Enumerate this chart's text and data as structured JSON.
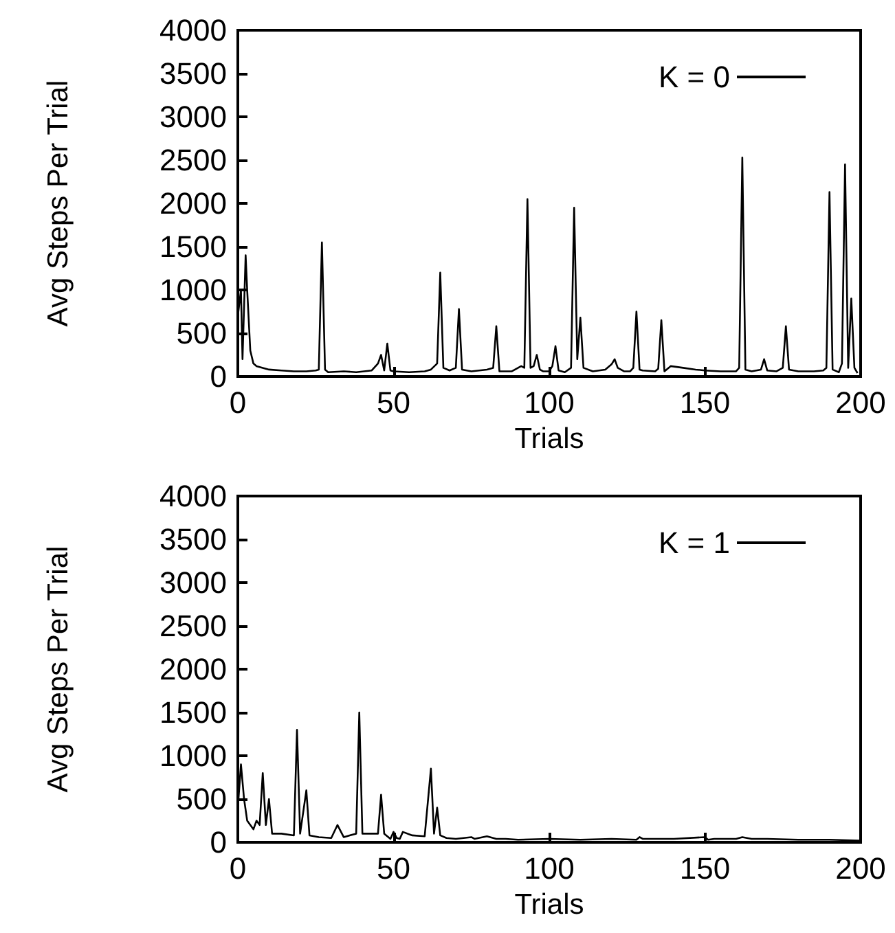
{
  "chart_data": [
    {
      "type": "line",
      "xlabel": "Trials",
      "ylabel": "Avg Steps Per Trial",
      "xlim": [
        0,
        200
      ],
      "xticks": [
        0,
        50,
        100,
        150,
        200
      ],
      "ylim": [
        0,
        4000
      ],
      "yticks": [
        0,
        500,
        1000,
        1500,
        2000,
        2500,
        3000,
        3500,
        4000
      ],
      "grid": false,
      "legend": "top right",
      "marker": "none",
      "series": [
        {
          "name": "K = 0",
          "color": "#000000",
          "x": [
            0,
            1,
            1.5,
            2.5,
            3,
            4,
            5,
            6,
            8,
            10,
            14,
            18,
            22,
            25,
            26,
            27,
            28,
            29,
            34,
            38,
            43,
            45,
            46,
            47,
            48,
            49,
            50,
            55,
            60,
            62,
            64,
            65,
            66,
            68,
            70,
            71,
            72,
            75,
            80,
            82,
            83,
            84,
            88,
            91,
            92,
            93,
            94,
            95,
            96,
            97,
            98,
            100,
            101,
            102,
            103,
            105,
            107,
            108,
            109,
            110,
            111,
            114,
            118,
            120,
            121,
            122,
            124,
            126,
            127,
            128,
            129,
            130,
            134,
            135,
            136,
            137,
            139,
            143,
            147,
            150,
            155,
            160,
            161,
            162,
            163,
            165,
            168,
            169,
            170,
            173,
            175,
            176,
            177,
            180,
            185,
            188,
            189,
            190,
            191,
            193,
            194,
            195,
            196,
            197,
            198,
            199
          ],
          "values": [
            700,
            1000,
            200,
            1400,
            1000,
            300,
            150,
            120,
            100,
            80,
            70,
            60,
            60,
            70,
            80,
            1550,
            80,
            50,
            60,
            50,
            70,
            150,
            250,
            70,
            380,
            70,
            60,
            50,
            60,
            80,
            150,
            1200,
            100,
            70,
            100,
            780,
            80,
            60,
            80,
            100,
            580,
            60,
            60,
            120,
            100,
            2050,
            100,
            120,
            250,
            80,
            60,
            60,
            120,
            350,
            70,
            50,
            100,
            1950,
            200,
            680,
            100,
            60,
            80,
            140,
            200,
            100,
            60,
            60,
            100,
            750,
            80,
            70,
            60,
            90,
            650,
            60,
            120,
            100,
            80,
            70,
            60,
            60,
            100,
            2530,
            80,
            60,
            80,
            200,
            70,
            60,
            100,
            580,
            80,
            60,
            60,
            70,
            100,
            2130,
            80,
            50,
            150,
            2450,
            100,
            900,
            100,
            40
          ]
        }
      ]
    },
    {
      "type": "line",
      "xlabel": "Trials",
      "ylabel": "Avg Steps Per Trial",
      "xlim": [
        0,
        200
      ],
      "xticks": [
        0,
        50,
        100,
        150,
        200
      ],
      "ylim": [
        0,
        4000
      ],
      "yticks": [
        0,
        500,
        1000,
        1500,
        2000,
        2500,
        3000,
        3500,
        4000
      ],
      "grid": false,
      "legend": "top right",
      "marker": "none",
      "series": [
        {
          "name": "K = 1",
          "color": "#000000",
          "x": [
            0,
            1,
            2,
            3,
            5,
            6,
            7,
            8,
            9,
            10,
            11,
            14,
            18,
            19,
            20,
            22,
            23,
            26,
            30,
            32,
            34,
            38,
            39,
            40,
            44,
            45,
            46,
            47,
            49,
            50,
            51,
            52,
            53,
            56,
            60,
            62,
            63,
            64,
            65,
            67,
            70,
            75,
            76,
            80,
            83,
            86,
            90,
            100,
            110,
            120,
            128,
            129,
            130,
            140,
            150,
            151,
            153,
            160,
            162,
            165,
            170,
            180,
            190,
            200
          ],
          "values": [
            400,
            900,
            500,
            250,
            150,
            250,
            200,
            800,
            200,
            500,
            100,
            100,
            80,
            1300,
            100,
            600,
            80,
            60,
            50,
            200,
            60,
            100,
            1500,
            100,
            100,
            100,
            550,
            100,
            40,
            120,
            50,
            40,
            120,
            80,
            70,
            850,
            100,
            400,
            80,
            50,
            40,
            60,
            40,
            70,
            40,
            40,
            30,
            40,
            30,
            40,
            30,
            60,
            40,
            40,
            60,
            30,
            40,
            40,
            60,
            40,
            40,
            30,
            30,
            20
          ]
        }
      ]
    }
  ]
}
